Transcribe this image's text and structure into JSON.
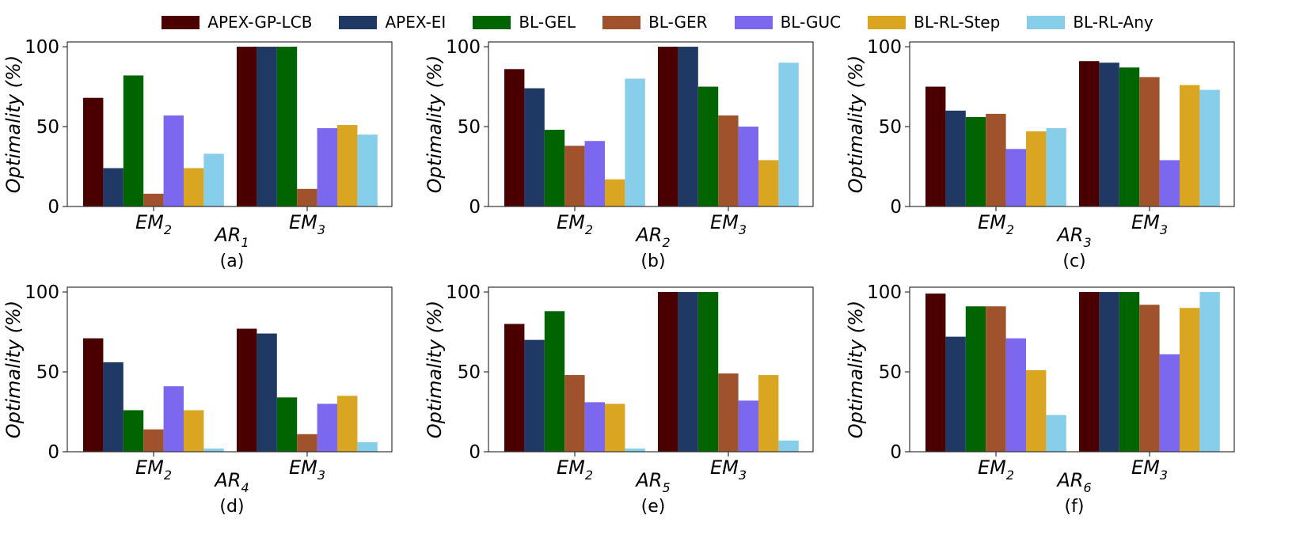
{
  "chart_data": {
    "type": "bar",
    "series": [
      {
        "name": "APEX-GP-LCB",
        "color": "#4b0000"
      },
      {
        "name": "APEX-EI",
        "color": "#1f3864"
      },
      {
        "name": "BL-GEL",
        "color": "#006400"
      },
      {
        "name": "BL-GER",
        "color": "#a0522d"
      },
      {
        "name": "BL-GUC",
        "color": "#7b68ee"
      },
      {
        "name": "BL-RL-Step",
        "color": "#daa520"
      },
      {
        "name": "BL-RL-Any",
        "color": "#87ceeb"
      }
    ],
    "ylabel": "Optimality (%)",
    "ylim": [
      0,
      103
    ],
    "yticks": [
      "0",
      "50",
      "100"
    ],
    "categories": [
      {
        "main": "EM",
        "sub": "2"
      },
      {
        "main": "EM",
        "sub": "3"
      }
    ],
    "panels": [
      {
        "xlabel_main": "AR",
        "xlabel_sub": "1",
        "caption": "(a)",
        "values": [
          [
            68,
            24,
            82,
            8,
            57,
            24,
            33
          ],
          [
            100,
            100,
            100,
            11,
            49,
            51,
            45
          ]
        ]
      },
      {
        "xlabel_main": "AR",
        "xlabel_sub": "2",
        "caption": "(b)",
        "values": [
          [
            86,
            74,
            48,
            38,
            41,
            17,
            80
          ],
          [
            100,
            100,
            75,
            57,
            50,
            29,
            90
          ]
        ]
      },
      {
        "xlabel_main": "AR",
        "xlabel_sub": "3",
        "caption": "(c)",
        "values": [
          [
            75,
            60,
            56,
            58,
            36,
            47,
            49
          ],
          [
            91,
            90,
            87,
            81,
            29,
            76,
            73
          ]
        ]
      },
      {
        "xlabel_main": "AR",
        "xlabel_sub": "4",
        "caption": "(d)",
        "values": [
          [
            71,
            56,
            26,
            14,
            41,
            26,
            2
          ],
          [
            77,
            74,
            34,
            11,
            30,
            35,
            6
          ]
        ]
      },
      {
        "xlabel_main": "AR",
        "xlabel_sub": "5",
        "caption": "(e)",
        "values": [
          [
            80,
            70,
            88,
            48,
            31,
            30,
            2
          ],
          [
            100,
            100,
            100,
            49,
            32,
            48,
            7
          ]
        ]
      },
      {
        "xlabel_main": "AR",
        "xlabel_sub": "6",
        "caption": "(f)",
        "values": [
          [
            99,
            72,
            91,
            91,
            71,
            51,
            23
          ],
          [
            100,
            100,
            100,
            92,
            61,
            90,
            100
          ]
        ]
      }
    ]
  }
}
